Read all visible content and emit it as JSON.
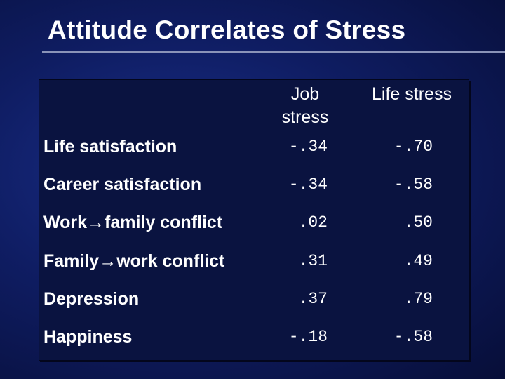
{
  "header": {
    "title": "Attitude Correlates of Stress"
  },
  "table": {
    "columns": [
      "Job stress",
      "Life stress"
    ],
    "rows": [
      [
        "Life satisfaction",
        "-.34",
        "-.70"
      ],
      [
        "Career satisfaction",
        "-.34",
        "-.58"
      ],
      [
        "Work→family conflict",
        ".02",
        ".50"
      ],
      [
        "Family→work conflict",
        ".31",
        ".49"
      ],
      [
        "Depression",
        ".37",
        ".79"
      ],
      [
        "Happiness",
        "-.18",
        "-.58"
      ]
    ]
  }
}
